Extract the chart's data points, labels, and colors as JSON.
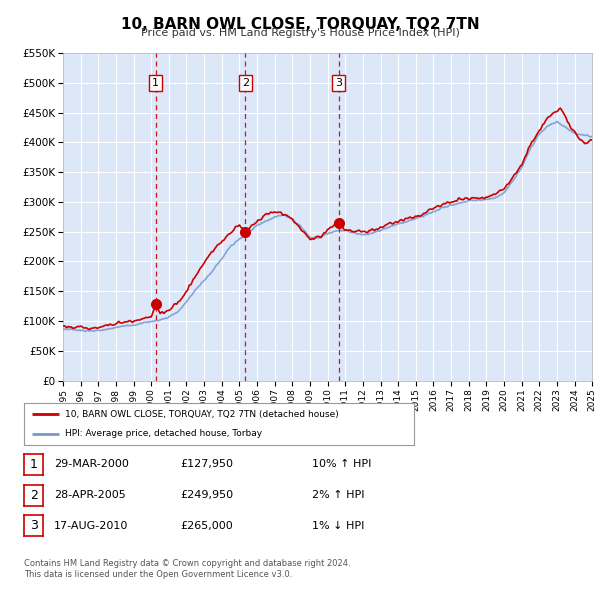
{
  "title": "10, BARN OWL CLOSE, TORQUAY, TQ2 7TN",
  "subtitle": "Price paid vs. HM Land Registry's House Price Index (HPI)",
  "hpi_label": "HPI: Average price, detached house, Torbay",
  "price_label": "10, BARN OWL CLOSE, TORQUAY, TQ2 7TN (detached house)",
  "footer1": "Contains HM Land Registry data © Crown copyright and database right 2024.",
  "footer2": "This data is licensed under the Open Government Licence v3.0.",
  "xlim": [
    1995,
    2025
  ],
  "ylim": [
    0,
    550000
  ],
  "yticks": [
    0,
    50000,
    100000,
    150000,
    200000,
    250000,
    300000,
    350000,
    400000,
    450000,
    500000,
    550000
  ],
  "ytick_labels": [
    "£0",
    "£50K",
    "£100K",
    "£150K",
    "£200K",
    "£250K",
    "£300K",
    "£350K",
    "£400K",
    "£450K",
    "£500K",
    "£550K"
  ],
  "xticks": [
    1995,
    1996,
    1997,
    1998,
    1999,
    2000,
    2001,
    2002,
    2003,
    2004,
    2005,
    2006,
    2007,
    2008,
    2009,
    2010,
    2011,
    2012,
    2013,
    2014,
    2015,
    2016,
    2017,
    2018,
    2019,
    2020,
    2021,
    2022,
    2023,
    2024,
    2025
  ],
  "sale_dates": [
    2000.25,
    2005.33,
    2010.63
  ],
  "sale_prices": [
    127950,
    249950,
    265000
  ],
  "sale_labels": [
    "1",
    "2",
    "3"
  ],
  "vline_dates": [
    2000.25,
    2005.33,
    2010.63
  ],
  "table_rows": [
    {
      "num": "1",
      "date": "29-MAR-2000",
      "price": "£127,950",
      "change": "10% ↑ HPI"
    },
    {
      "num": "2",
      "date": "28-APR-2005",
      "price": "£249,950",
      "change": "2% ↑ HPI"
    },
    {
      "num": "3",
      "date": "17-AUG-2010",
      "price": "£265,000",
      "change": "1% ↓ HPI"
    }
  ],
  "bg_color": "#dce8f8",
  "red_color": "#cc0000",
  "blue_color": "#7799cc",
  "grid_color": "#ffffff",
  "vline_color": "#cc0000",
  "hpi_points": [
    [
      1995.0,
      87000
    ],
    [
      1995.5,
      86000
    ],
    [
      1996.0,
      84000
    ],
    [
      1996.5,
      83500
    ],
    [
      1997.0,
      84000
    ],
    [
      1997.5,
      86000
    ],
    [
      1998.0,
      89000
    ],
    [
      1998.5,
      92000
    ],
    [
      1999.0,
      93000
    ],
    [
      1999.5,
      96000
    ],
    [
      2000.0,
      99000
    ],
    [
      2000.5,
      102000
    ],
    [
      2001.0,
      107000
    ],
    [
      2001.5,
      115000
    ],
    [
      2002.0,
      132000
    ],
    [
      2002.5,
      152000
    ],
    [
      2003.0,
      168000
    ],
    [
      2003.5,
      185000
    ],
    [
      2004.0,
      205000
    ],
    [
      2004.5,
      225000
    ],
    [
      2005.0,
      238000
    ],
    [
      2005.5,
      248000
    ],
    [
      2006.0,
      260000
    ],
    [
      2006.5,
      268000
    ],
    [
      2007.0,
      275000
    ],
    [
      2007.5,
      278000
    ],
    [
      2008.0,
      272000
    ],
    [
      2008.5,
      258000
    ],
    [
      2009.0,
      240000
    ],
    [
      2009.5,
      240000
    ],
    [
      2010.0,
      247000
    ],
    [
      2010.5,
      252000
    ],
    [
      2011.0,
      252000
    ],
    [
      2011.5,
      248000
    ],
    [
      2012.0,
      245000
    ],
    [
      2012.5,
      248000
    ],
    [
      2013.0,
      252000
    ],
    [
      2013.5,
      258000
    ],
    [
      2014.0,
      263000
    ],
    [
      2014.5,
      267000
    ],
    [
      2015.0,
      272000
    ],
    [
      2015.5,
      278000
    ],
    [
      2016.0,
      283000
    ],
    [
      2016.5,
      290000
    ],
    [
      2017.0,
      295000
    ],
    [
      2017.5,
      298000
    ],
    [
      2018.0,
      302000
    ],
    [
      2018.5,
      303000
    ],
    [
      2019.0,
      304000
    ],
    [
      2019.5,
      307000
    ],
    [
      2020.0,
      315000
    ],
    [
      2020.5,
      335000
    ],
    [
      2021.0,
      358000
    ],
    [
      2021.5,
      390000
    ],
    [
      2022.0,
      415000
    ],
    [
      2022.5,
      428000
    ],
    [
      2023.0,
      435000
    ],
    [
      2023.5,
      425000
    ],
    [
      2024.0,
      415000
    ],
    [
      2024.5,
      412000
    ],
    [
      2025.0,
      410000
    ]
  ],
  "red_points": [
    [
      1995.0,
      90000
    ],
    [
      1995.3,
      92000
    ],
    [
      1995.6,
      89000
    ],
    [
      1995.9,
      91000
    ],
    [
      1996.2,
      89000
    ],
    [
      1996.5,
      87000
    ],
    [
      1996.8,
      88000
    ],
    [
      1997.1,
      90000
    ],
    [
      1997.4,
      92000
    ],
    [
      1997.7,
      93000
    ],
    [
      1998.0,
      95000
    ],
    [
      1998.3,
      97000
    ],
    [
      1998.6,
      99000
    ],
    [
      1998.9,
      100000
    ],
    [
      1999.2,
      101000
    ],
    [
      1999.5,
      103000
    ],
    [
      1999.8,
      105000
    ],
    [
      2000.0,
      107000
    ],
    [
      2000.25,
      127950
    ],
    [
      2000.5,
      112000
    ],
    [
      2000.8,
      115000
    ],
    [
      2001.1,
      120000
    ],
    [
      2001.4,
      128000
    ],
    [
      2001.7,
      138000
    ],
    [
      2002.0,
      150000
    ],
    [
      2002.3,
      165000
    ],
    [
      2002.6,
      180000
    ],
    [
      2002.9,
      195000
    ],
    [
      2003.2,
      207000
    ],
    [
      2003.5,
      218000
    ],
    [
      2003.8,
      228000
    ],
    [
      2004.1,
      235000
    ],
    [
      2004.4,
      245000
    ],
    [
      2004.7,
      255000
    ],
    [
      2005.0,
      262000
    ],
    [
      2005.33,
      249950
    ],
    [
      2005.6,
      258000
    ],
    [
      2005.9,
      265000
    ],
    [
      2006.2,
      272000
    ],
    [
      2006.5,
      278000
    ],
    [
      2006.8,
      282000
    ],
    [
      2007.0,
      283000
    ],
    [
      2007.2,
      282000
    ],
    [
      2007.4,
      280000
    ],
    [
      2007.6,
      278000
    ],
    [
      2007.8,
      275000
    ],
    [
      2008.0,
      270000
    ],
    [
      2008.2,
      262000
    ],
    [
      2008.5,
      252000
    ],
    [
      2008.8,
      244000
    ],
    [
      2009.0,
      238000
    ],
    [
      2009.2,
      238000
    ],
    [
      2009.4,
      240000
    ],
    [
      2009.6,
      242000
    ],
    [
      2009.8,
      248000
    ],
    [
      2010.0,
      252000
    ],
    [
      2010.2,
      256000
    ],
    [
      2010.4,
      260000
    ],
    [
      2010.63,
      265000
    ],
    [
      2010.8,
      258000
    ],
    [
      2011.0,
      254000
    ],
    [
      2011.2,
      252000
    ],
    [
      2011.4,
      250000
    ],
    [
      2011.6,
      250000
    ],
    [
      2011.8,
      250000
    ],
    [
      2012.0,
      249000
    ],
    [
      2012.2,
      250000
    ],
    [
      2012.5,
      252000
    ],
    [
      2012.8,
      255000
    ],
    [
      2013.1,
      258000
    ],
    [
      2013.4,
      262000
    ],
    [
      2013.7,
      265000
    ],
    [
      2014.0,
      267000
    ],
    [
      2014.3,
      270000
    ],
    [
      2014.6,
      273000
    ],
    [
      2015.0,
      275000
    ],
    [
      2015.3,
      279000
    ],
    [
      2015.6,
      283000
    ],
    [
      2016.0,
      289000
    ],
    [
      2016.3,
      292000
    ],
    [
      2016.6,
      296000
    ],
    [
      2017.0,
      299000
    ],
    [
      2017.3,
      302000
    ],
    [
      2017.6,
      304000
    ],
    [
      2018.0,
      306000
    ],
    [
      2018.3,
      307000
    ],
    [
      2018.6,
      307000
    ],
    [
      2019.0,
      308000
    ],
    [
      2019.3,
      310000
    ],
    [
      2019.6,
      314000
    ],
    [
      2020.0,
      322000
    ],
    [
      2020.3,
      332000
    ],
    [
      2020.6,
      345000
    ],
    [
      2021.0,
      362000
    ],
    [
      2021.3,
      382000
    ],
    [
      2021.6,
      402000
    ],
    [
      2022.0,
      420000
    ],
    [
      2022.3,
      435000
    ],
    [
      2022.6,
      445000
    ],
    [
      2023.0,
      452000
    ],
    [
      2023.2,
      458000
    ],
    [
      2023.4,
      448000
    ],
    [
      2023.6,
      435000
    ],
    [
      2023.8,
      425000
    ],
    [
      2024.0,
      418000
    ],
    [
      2024.2,
      408000
    ],
    [
      2024.4,
      402000
    ],
    [
      2024.6,
      398000
    ],
    [
      2024.8,
      400000
    ],
    [
      2025.0,
      405000
    ]
  ]
}
